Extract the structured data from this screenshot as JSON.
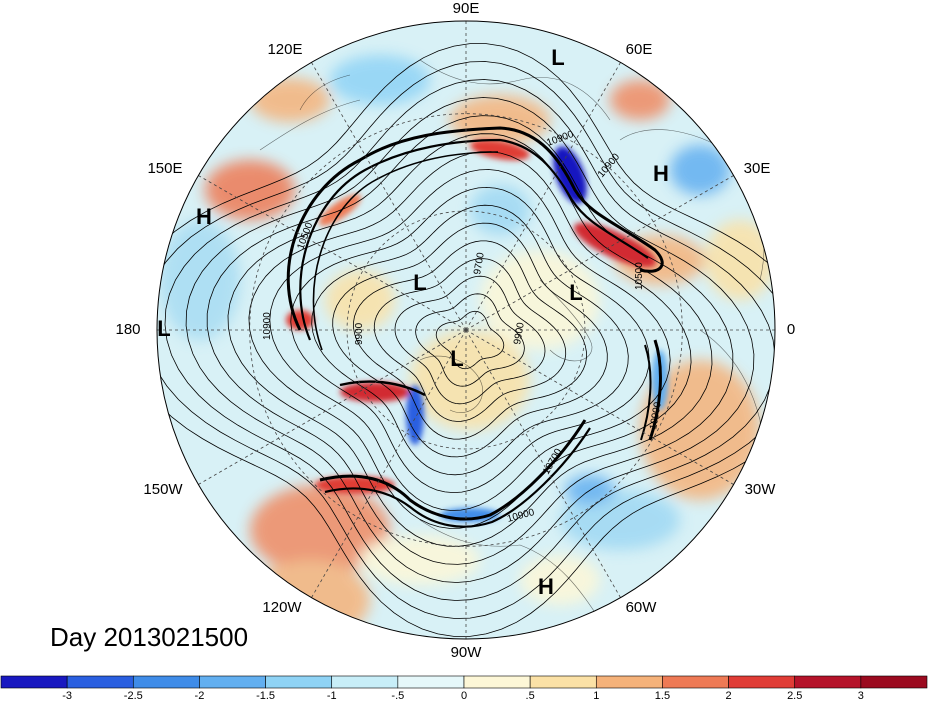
{
  "title": "Day 2013021500",
  "longitude_labels": [
    "90E",
    "60E",
    "30E",
    "0",
    "30W",
    "60W",
    "90W",
    "120W",
    "150W",
    "180",
    "150E",
    "120E"
  ],
  "pressure_systems": [
    "L",
    "L",
    "L",
    "L",
    "L",
    "H",
    "H",
    "H"
  ],
  "contour_labels": [
    "10900",
    "10900",
    "10500",
    "10900",
    "9700",
    "9900",
    "9900",
    "10700",
    "10900",
    "10900",
    "10500"
  ],
  "colorbar": {
    "labels": [
      "-3",
      "-2.5",
      "-2",
      "-1.5",
      "-1",
      "-.5",
      "0",
      ".5",
      "1",
      "1.5",
      "2",
      "2.5",
      "3"
    ],
    "colors": [
      "#1818c0",
      "#2a5fe0",
      "#3f8ce8",
      "#62aff0",
      "#8fd3f5",
      "#c8eef8",
      "#e6f8fa",
      "#fdf7d7",
      "#fbe1a6",
      "#f5b27a",
      "#ee7a55",
      "#e03c36",
      "#b5132a",
      "#9b0a1f"
    ]
  }
}
